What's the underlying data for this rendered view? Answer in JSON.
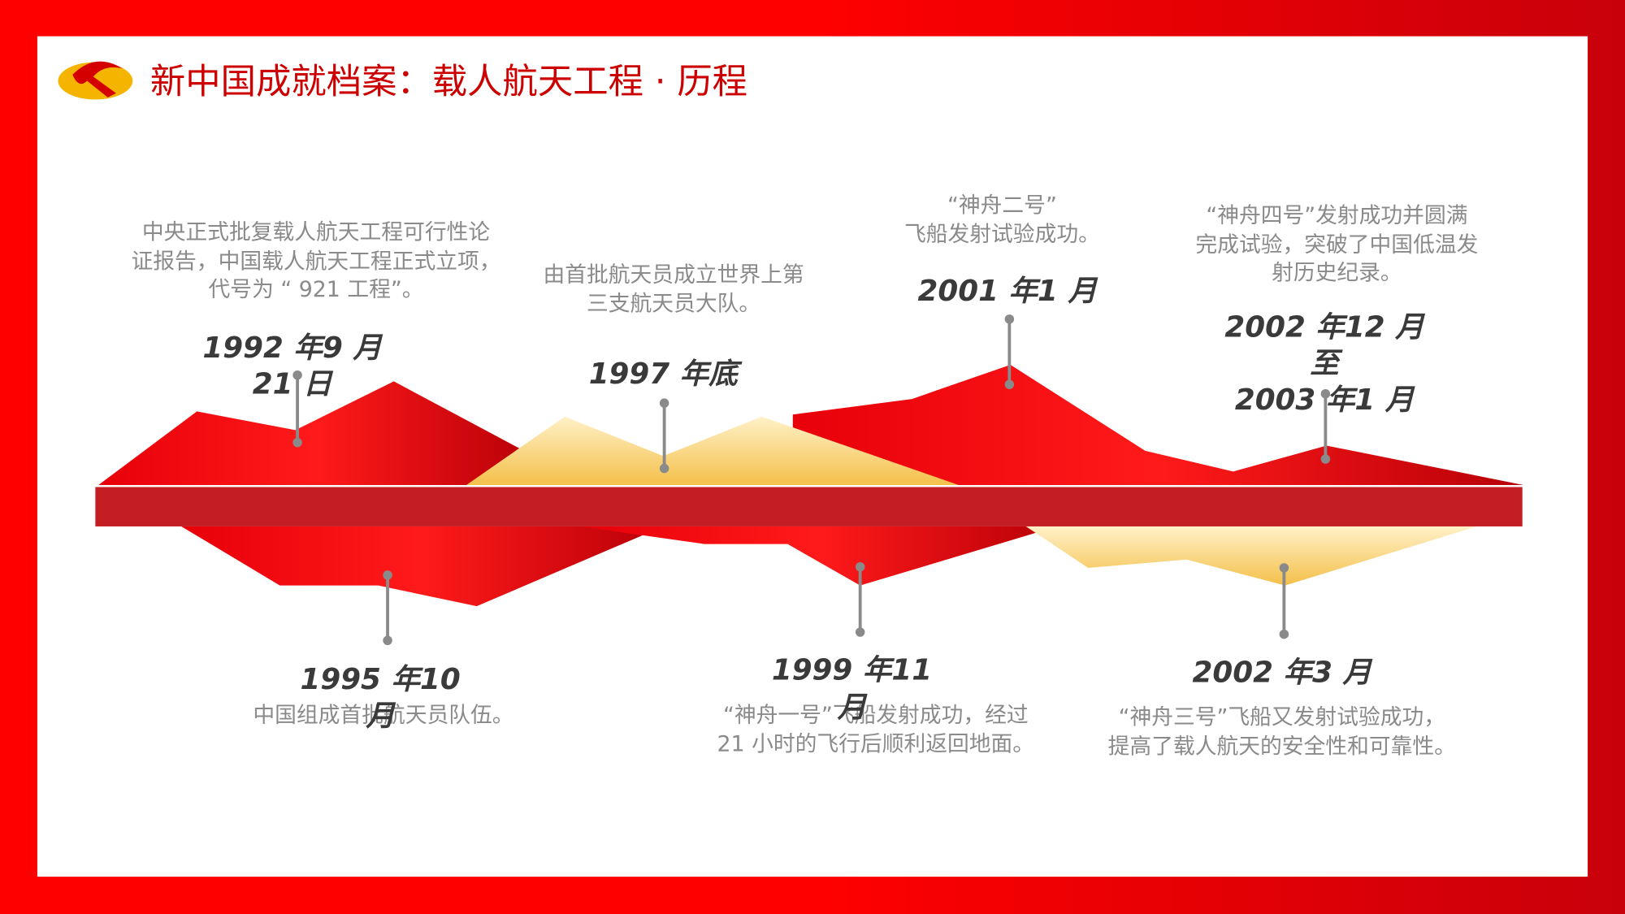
{
  "header": {
    "title": "新中国成就档案：载人航天工程 · 历程"
  },
  "events": [
    {
      "date_lines": [
        "1992 年9 月",
        "21 日"
      ],
      "description_lines": [
        "中央正式批复载人航天工程可行性论",
        "证报告，中国载人航天工程正式立项，",
        "代号为 “ 921 工程”。"
      ]
    },
    {
      "date_lines": [
        "1997 年底"
      ],
      "description_lines": [
        "由首批航天员成立世界上第",
        "三支航天员大队。"
      ]
    },
    {
      "date_lines": [
        "2001 年1 月"
      ],
      "description_lines": [
        "“神舟二号”",
        "飞船发射试验成功。"
      ]
    },
    {
      "date_lines": [
        "2002 年12 月",
        "至",
        "2003 年1 月"
      ],
      "description_lines": [
        "“神舟四号”发射成功并圆满",
        "完成试验，突破了中国低温发",
        "射历史纪录。"
      ]
    },
    {
      "date_lines": [
        "1995 年10",
        "月"
      ],
      "description_lines": [
        "中国组成首批航天员队伍。"
      ]
    },
    {
      "date_lines": [
        "1999 年11",
        "月"
      ],
      "description_lines": [
        "“神舟一号”飞船发射成功，经过",
        "21 小时的飞行后顺利返回地面。"
      ]
    },
    {
      "date_lines": [
        "2002 年3 月"
      ],
      "description_lines": [
        "“神舟三号”飞船又发射试验成功，",
        "提高了载人航天的安全性和可靠性。"
      ]
    }
  ]
}
